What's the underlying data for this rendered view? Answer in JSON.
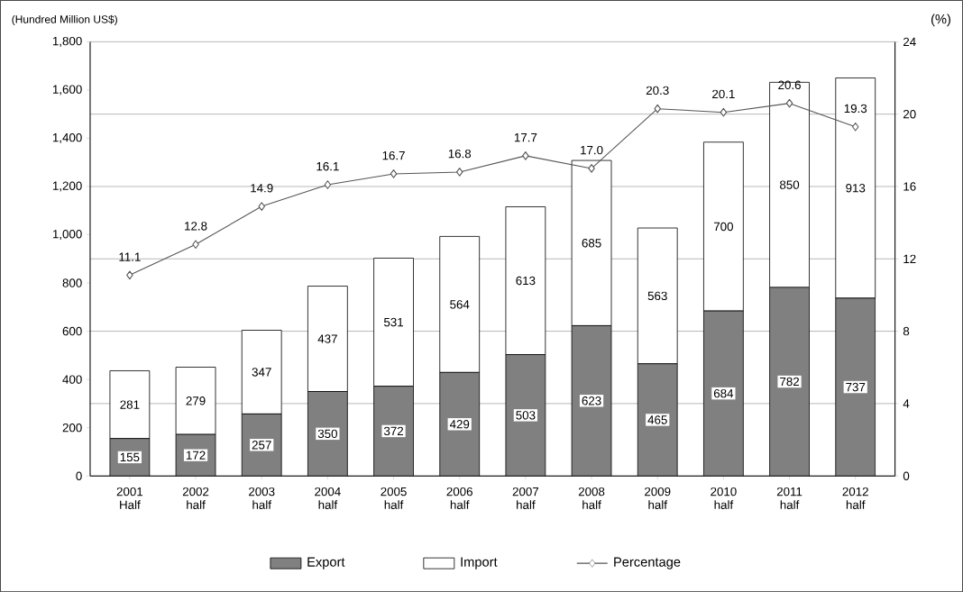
{
  "chart_data": {
    "type": "bar",
    "stacked": true,
    "ylabel": "(Hundred Million US$)",
    "y2label": "(%)",
    "categories": [
      "2001 Half",
      "2002 half",
      "2003 half",
      "2004 half",
      "2005 half",
      "2006 half",
      "2007 half",
      "2008 half",
      "2009 half",
      "2010 half",
      "2011 half",
      "2012 half"
    ],
    "series": [
      {
        "name": "Export",
        "color": "#808080",
        "values": [
          155,
          172,
          257,
          350,
          372,
          429,
          503,
          623,
          465,
          684,
          782,
          737
        ],
        "value_labels": [
          "155",
          "172",
          "257",
          "350",
          "372",
          "429",
          "503",
          "623",
          "465",
          "684",
          "782",
          "737"
        ]
      },
      {
        "name": "Import",
        "color": "#ffffff",
        "values": [
          281,
          279,
          347,
          437,
          531,
          564,
          613,
          685,
          563,
          700,
          850,
          913
        ],
        "value_labels": [
          "281",
          "279",
          "347",
          "437",
          "531",
          "564",
          "613",
          "685",
          "563",
          "700",
          "850",
          "913"
        ]
      },
      {
        "name": "Percentage",
        "type": "line",
        "axis": "y2",
        "color": "#555555",
        "values": [
          11.1,
          12.8,
          14.9,
          16.1,
          16.7,
          16.8,
          17.7,
          17.0,
          20.3,
          20.1,
          20.6,
          19.3
        ],
        "value_labels": [
          "11.1",
          "12.8",
          "14.9",
          "16.1",
          "16.7",
          "16.8",
          "17.7",
          "17.0",
          "20.3",
          "20.1",
          "20.6",
          "19.3"
        ]
      }
    ],
    "ylim": [
      0,
      1800
    ],
    "yticks": [
      0,
      200,
      400,
      600,
      800,
      {
        "value": 1000,
        "label": "1,000"
      },
      {
        "value": 1200,
        "label": "1,200"
      },
      {
        "value": 1400,
        "label": "1,400"
      },
      {
        "value": 1600,
        "label": "1,600"
      },
      {
        "value": 1800,
        "label": "1,800"
      }
    ],
    "y2lim": [
      0,
      24
    ],
    "y2ticks": [
      0,
      4,
      8,
      12,
      16,
      20,
      24
    ],
    "grid": "y",
    "legend": "bottom",
    "marker": "diamond"
  }
}
